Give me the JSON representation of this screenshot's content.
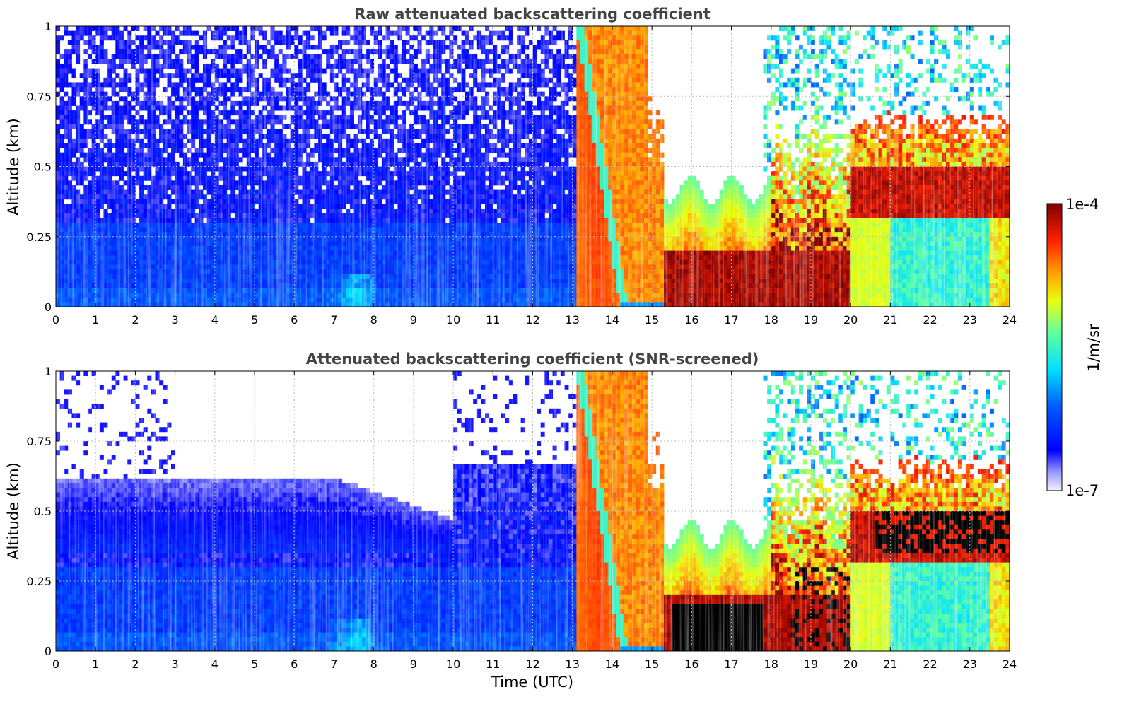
{
  "chart_data": [
    {
      "type": "heatmap",
      "title": "Raw attenuated backscattering coefficient",
      "xlabel": "",
      "ylabel": "Altitude (km)",
      "xlim": [
        0,
        24
      ],
      "ylim": [
        0,
        1
      ],
      "x_ticks": [
        "0",
        "1",
        "2",
        "3",
        "4",
        "5",
        "6",
        "7",
        "8",
        "9",
        "10",
        "11",
        "12",
        "13",
        "14",
        "15",
        "16",
        "17",
        "18",
        "19",
        "20",
        "21",
        "22",
        "23",
        "24"
      ],
      "y_ticks": [
        "0",
        "0.25",
        "0.5",
        "0.75",
        "1"
      ],
      "grid": true,
      "colormap": "jet",
      "mode": "raw",
      "regions": [
        {
          "time": [
            0,
            13.1
          ],
          "altitude": [
            0,
            1
          ],
          "level": "low (blue, noisy above 0.3 km)"
        },
        {
          "time": [
            13.1,
            15.2
          ],
          "altitude": [
            0,
            1
          ],
          "level": "medium-high (orange/yellow fog layer)"
        },
        {
          "time": [
            15.5,
            20
          ],
          "altitude": [
            0,
            0.25
          ],
          "level": "high (dark red)"
        },
        {
          "time": [
            20,
            24
          ],
          "altitude": [
            0.3,
            0.55
          ],
          "level": "high (dark red layer)"
        },
        {
          "time": [
            20,
            24
          ],
          "altitude": [
            0,
            0.3
          ],
          "level": "medium (cyan/yellow)"
        }
      ]
    },
    {
      "type": "heatmap",
      "title": "Attenuated backscattering coefficient (SNR-screened)",
      "xlabel": "Time (UTC)",
      "ylabel": "Altitude (km)",
      "xlim": [
        0,
        24
      ],
      "ylim": [
        0,
        1
      ],
      "x_ticks": [
        "0",
        "1",
        "2",
        "3",
        "4",
        "5",
        "6",
        "7",
        "8",
        "9",
        "10",
        "11",
        "12",
        "13",
        "14",
        "15",
        "16",
        "17",
        "18",
        "19",
        "20",
        "21",
        "22",
        "23",
        "24"
      ],
      "y_ticks": [
        "0",
        "0.25",
        "0.5",
        "0.75",
        "1"
      ],
      "grid": true,
      "colormap": "jet",
      "mode": "screened",
      "regions": [
        {
          "time": [
            0,
            10
          ],
          "altitude": [
            0,
            0.65
          ],
          "level": "low (blue, fading with height)"
        },
        {
          "time": [
            10,
            13.1
          ],
          "altitude": [
            0,
            0.7
          ],
          "level": "low (blue)"
        },
        {
          "time": [
            13.1,
            15.2
          ],
          "altitude": [
            0,
            1
          ],
          "level": "medium-high (orange/yellow)"
        },
        {
          "time": [
            15.5,
            17.8
          ],
          "altitude": [
            0,
            0.17
          ],
          "level": "saturated (black)"
        },
        {
          "time": [
            20.5,
            24
          ],
          "altitude": [
            0.35,
            0.5
          ],
          "level": "saturated (black layer)"
        }
      ]
    }
  ],
  "colorbar": {
    "min_label": "1e-7",
    "max_label": "1e-4",
    "units": "1/m/sr",
    "colormap": "jet"
  }
}
